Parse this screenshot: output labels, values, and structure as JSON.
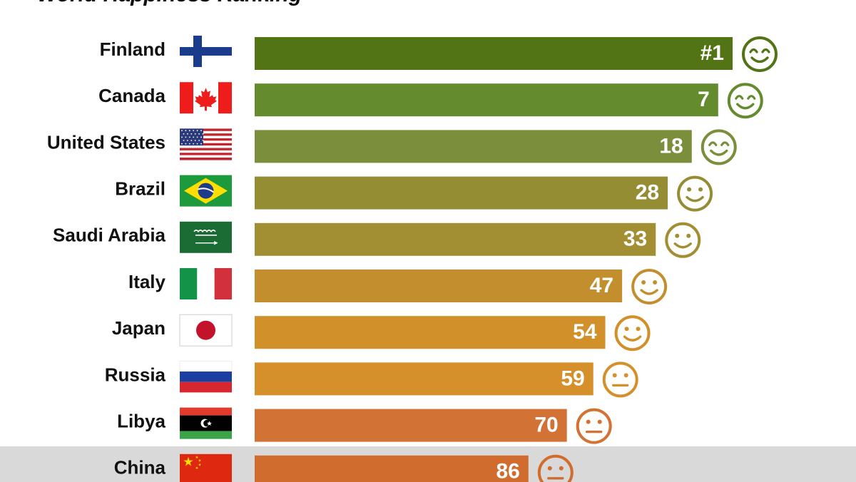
{
  "chart_data": {
    "type": "bar",
    "title": "World Happiness Ranking",
    "xlabel": "",
    "ylabel": "",
    "orientation": "horizontal",
    "value_prefix_first": "#",
    "categories": [
      "Finland",
      "Canada",
      "United States",
      "Brazil",
      "Saudi Arabia",
      "Italy",
      "Japan",
      "Russia",
      "Libya",
      "China"
    ],
    "series": [
      {
        "values": [
          1,
          7,
          18,
          28,
          33,
          47,
          54,
          59,
          70,
          86
        ]
      }
    ],
    "xlim": [
      1,
      200
    ],
    "grid": false,
    "highlighted_category": "China",
    "colors": [
      "#527415",
      "#648c2f",
      "#7b8e3c",
      "#958d33",
      "#a38f33",
      "#c38f2e",
      "#d2902a",
      "#d6902b",
      "#d27234",
      "#d06c2d"
    ],
    "faces": [
      "big-smile",
      "big-smile",
      "big-smile",
      "smile",
      "smile",
      "smile",
      "smile",
      "neutral",
      "neutral",
      "neutral"
    ]
  }
}
